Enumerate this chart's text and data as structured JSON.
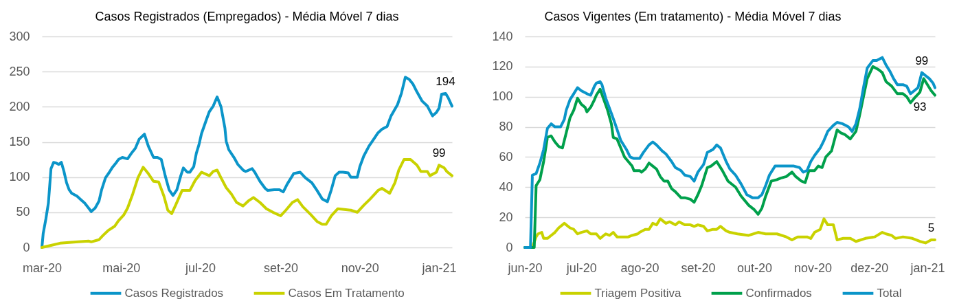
{
  "chart_data": [
    {
      "type": "line",
      "title": "Casos Registrados (Empregados) - Média Móvel 7 dias",
      "xlim": [
        "2020-03-01",
        "2021-01-11"
      ],
      "xticks": [
        {
          "value": "2020-03-01",
          "label": "mar-20"
        },
        {
          "value": "2020-05-01",
          "label": "mai-20"
        },
        {
          "value": "2020-07-01",
          "label": "jul-20"
        },
        {
          "value": "2020-09-01",
          "label": "set-20"
        },
        {
          "value": "2020-11-01",
          "label": "nov-20"
        },
        {
          "value": "2021-01-01",
          "label": "jan-21"
        }
      ],
      "ylim": [
        0,
        300
      ],
      "yticks": [
        0,
        50,
        100,
        150,
        200,
        250,
        300
      ],
      "grid": "y",
      "legend": "bottom",
      "series": [
        {
          "name": "Casos Registrados",
          "color": "#0b95c9",
          "x": [
            "2020-03-01",
            "2020-03-02",
            "2020-03-04",
            "2020-03-06",
            "2020-03-08",
            "2020-03-10",
            "2020-03-12",
            "2020-03-14",
            "2020-03-16",
            "2020-03-18",
            "2020-03-20",
            "2020-03-22",
            "2020-03-24",
            "2020-03-28",
            "2020-03-31",
            "2020-04-03",
            "2020-04-06",
            "2020-04-08",
            "2020-04-11",
            "2020-04-14",
            "2020-04-16",
            "2020-04-19",
            "2020-04-22",
            "2020-04-24",
            "2020-04-27",
            "2020-04-29",
            "2020-05-02",
            "2020-05-06",
            "2020-05-09",
            "2020-05-12",
            "2020-05-15",
            "2020-05-19",
            "2020-05-22",
            "2020-05-26",
            "2020-05-29",
            "2020-06-01",
            "2020-06-04",
            "2020-06-07",
            "2020-06-10",
            "2020-06-13",
            "2020-06-16",
            "2020-06-18",
            "2020-06-21",
            "2020-06-23",
            "2020-06-26",
            "2020-06-28",
            "2020-06-30",
            "2020-07-02",
            "2020-07-06",
            "2020-07-08",
            "2020-07-11",
            "2020-07-14",
            "2020-07-17",
            "2020-07-20",
            "2020-07-21",
            "2020-07-23",
            "2020-07-27",
            "2020-07-30",
            "2020-08-03",
            "2020-08-05",
            "2020-08-10",
            "2020-08-12",
            "2020-08-16",
            "2020-08-20",
            "2020-08-22",
            "2020-08-27",
            "2020-08-31",
            "2020-09-03",
            "2020-09-06",
            "2020-09-11",
            "2020-09-16",
            "2020-09-20",
            "2020-09-25",
            "2020-09-29",
            "2020-10-03",
            "2020-10-07",
            "2020-10-10",
            "2020-10-13",
            "2020-10-16",
            "2020-10-19",
            "2020-10-23",
            "2020-10-25",
            "2020-10-30",
            "2020-11-01",
            "2020-11-04",
            "2020-11-08",
            "2020-11-11",
            "2020-11-15",
            "2020-11-18",
            "2020-11-22",
            "2020-11-25",
            "2020-11-30",
            "2020-12-03",
            "2020-12-06",
            "2020-12-09",
            "2020-12-12",
            "2020-12-15",
            "2020-12-19",
            "2020-12-23",
            "2020-12-27",
            "2020-12-30",
            "2021-01-01",
            "2021-01-03",
            "2021-01-06",
            "2021-01-08",
            "2021-01-11"
          ],
          "values": [
            0,
            20,
            40,
            63,
            112,
            121,
            120,
            118,
            121,
            108,
            92,
            82,
            77,
            73,
            68,
            63,
            56,
            51,
            56,
            66,
            82,
            99,
            107,
            113,
            120,
            125,
            128,
            126,
            134,
            141,
            154,
            161,
            144,
            128,
            128,
            125,
            102,
            82,
            74,
            82,
            102,
            113,
            107,
            107,
            115,
            134,
            146,
            162,
            183,
            193,
            201,
            214,
            200,
            170,
            151,
            139,
            128,
            118,
            110,
            108,
            112,
            107,
            94,
            84,
            81,
            82,
            82,
            79,
            90,
            105,
            107,
            99,
            92,
            81,
            69,
            65,
            82,
            102,
            107,
            107,
            106,
            100,
            100,
            115,
            130,
            144,
            152,
            163,
            168,
            172,
            187,
            203,
            219,
            242,
            239,
            232,
            221,
            208,
            201,
            187,
            192,
            198,
            218,
            219,
            213,
            201
          ]
        },
        {
          "name": "Casos Em Tratamento",
          "color": "#c9d200",
          "x": [
            "2020-03-01",
            "2020-03-08",
            "2020-03-15",
            "2020-03-22",
            "2020-03-29",
            "2020-04-06",
            "2020-04-08",
            "2020-04-14",
            "2020-04-17",
            "2020-04-21",
            "2020-04-26",
            "2020-04-29",
            "2020-05-03",
            "2020-05-06",
            "2020-05-10",
            "2020-05-14",
            "2020-05-18",
            "2020-05-22",
            "2020-05-26",
            "2020-05-30",
            "2020-06-03",
            "2020-06-06",
            "2020-06-09",
            "2020-06-12",
            "2020-06-17",
            "2020-06-23",
            "2020-06-27",
            "2020-07-02",
            "2020-07-08",
            "2020-07-11",
            "2020-07-14",
            "2020-07-17",
            "2020-07-21",
            "2020-07-25",
            "2020-07-29",
            "2020-08-03",
            "2020-08-07",
            "2020-08-11",
            "2020-08-16",
            "2020-08-21",
            "2020-08-26",
            "2020-09-01",
            "2020-09-05",
            "2020-09-10",
            "2020-09-14",
            "2020-09-18",
            "2020-09-24",
            "2020-09-29",
            "2020-10-03",
            "2020-10-06",
            "2020-10-10",
            "2020-10-15",
            "2020-10-20",
            "2020-10-25",
            "2020-10-30",
            "2020-11-04",
            "2020-11-09",
            "2020-11-15",
            "2020-11-18",
            "2020-11-24",
            "2020-11-28",
            "2020-12-01",
            "2020-12-05",
            "2020-12-10",
            "2020-12-15",
            "2020-12-18",
            "2020-12-23",
            "2020-12-25",
            "2020-12-30",
            "2021-01-01",
            "2021-01-05",
            "2021-01-07",
            "2021-01-11"
          ],
          "values": [
            0,
            3,
            6,
            7,
            8,
            9,
            8,
            11,
            17,
            24,
            30,
            38,
            46,
            56,
            76,
            99,
            114,
            105,
            94,
            93,
            73,
            53,
            48,
            60,
            81,
            81,
            95,
            107,
            102,
            108,
            110,
            99,
            85,
            76,
            64,
            59,
            66,
            71,
            64,
            55,
            50,
            45,
            53,
            64,
            68,
            58,
            47,
            37,
            33,
            33,
            45,
            55,
            54,
            53,
            50,
            60,
            69,
            81,
            84,
            77,
            92,
            110,
            125,
            125,
            117,
            108,
            108,
            102,
            107,
            117,
            113,
            108,
            102
          ]
        }
      ],
      "annotations": [
        {
          "text": "194",
          "x": "2021-01-06",
          "y": 219
        },
        {
          "text": "99",
          "x": "2021-01-01",
          "y": 117
        }
      ]
    },
    {
      "type": "line",
      "title": "Casos Vigentes (Em tratamento) - Média Móvel 7 dias",
      "xlim": [
        "2020-06-01",
        "2021-01-05"
      ],
      "xticks": [
        {
          "value": "2020-06-01",
          "label": "jun-20"
        },
        {
          "value": "2020-07-01",
          "label": "jul-20"
        },
        {
          "value": "2020-08-01",
          "label": "ago-20"
        },
        {
          "value": "2020-09-01",
          "label": "set-20"
        },
        {
          "value": "2020-10-01",
          "label": "out-20"
        },
        {
          "value": "2020-11-01",
          "label": "nov-20"
        },
        {
          "value": "2020-12-01",
          "label": "dez-20"
        },
        {
          "value": "2021-01-01",
          "label": "jan-21"
        }
      ],
      "ylim": [
        0,
        140
      ],
      "yticks": [
        0,
        20,
        40,
        60,
        80,
        100,
        120,
        140
      ],
      "grid": "y",
      "legend": "bottom",
      "series": [
        {
          "name": "Triagem Positiva",
          "color": "#c9d200",
          "x": [
            "2020-06-01",
            "2020-06-05",
            "2020-06-07",
            "2020-06-08",
            "2020-06-10",
            "2020-06-11",
            "2020-06-13",
            "2020-06-15",
            "2020-06-17",
            "2020-06-19",
            "2020-06-22",
            "2020-06-25",
            "2020-06-27",
            "2020-06-29",
            "2020-07-01",
            "2020-07-04",
            "2020-07-06",
            "2020-07-09",
            "2020-07-11",
            "2020-07-14",
            "2020-07-16",
            "2020-07-18",
            "2020-07-20",
            "2020-07-23",
            "2020-07-26",
            "2020-07-28",
            "2020-07-31",
            "2020-08-01",
            "2020-08-04",
            "2020-08-06",
            "2020-08-08",
            "2020-08-10",
            "2020-08-12",
            "2020-08-15",
            "2020-08-17",
            "2020-08-20",
            "2020-08-22",
            "2020-08-25",
            "2020-08-28",
            "2020-08-30",
            "2020-09-01",
            "2020-09-04",
            "2020-09-06",
            "2020-09-09",
            "2020-09-11",
            "2020-09-13",
            "2020-09-16",
            "2020-09-18",
            "2020-09-22",
            "2020-09-28",
            "2020-10-03",
            "2020-10-07",
            "2020-10-13",
            "2020-10-18",
            "2020-10-21",
            "2020-10-24",
            "2020-10-29",
            "2020-10-31",
            "2020-11-02",
            "2020-11-05",
            "2020-11-07",
            "2020-11-09",
            "2020-11-12",
            "2020-11-14",
            "2020-11-17",
            "2020-11-21",
            "2020-11-24",
            "2020-11-29",
            "2020-12-04",
            "2020-12-08",
            "2020-12-10",
            "2020-12-13",
            "2020-12-15",
            "2020-12-19",
            "2020-12-24",
            "2020-12-28",
            "2020-12-31",
            "2021-01-03",
            "2021-01-05"
          ],
          "values": [
            0,
            0,
            7,
            9,
            10,
            6,
            6,
            8,
            10,
            13,
            16,
            13,
            12,
            9,
            10,
            11,
            9,
            9,
            6,
            9,
            8,
            10,
            7,
            7,
            7,
            8,
            9,
            10,
            12,
            12,
            16,
            15,
            19,
            16,
            17,
            15,
            17,
            15,
            15,
            14,
            15,
            14,
            11,
            12,
            12,
            14,
            11,
            10,
            9,
            8,
            10,
            9,
            9,
            7,
            5,
            7,
            7,
            6,
            10,
            12,
            19,
            15,
            15,
            5,
            6,
            6,
            4,
            6,
            7,
            10,
            9,
            8,
            6,
            7,
            6,
            4,
            3,
            5,
            5
          ]
        },
        {
          "name": "Confirmados",
          "color": "#00a04b",
          "x": [
            "2020-06-01",
            "2020-06-06",
            "2020-06-07",
            "2020-06-08",
            "2020-06-09",
            "2020-06-11",
            "2020-06-13",
            "2020-06-15",
            "2020-06-17",
            "2020-06-19",
            "2020-06-21",
            "2020-06-23",
            "2020-06-25",
            "2020-06-27",
            "2020-06-29",
            "2020-07-01",
            "2020-07-03",
            "2020-07-04",
            "2020-07-06",
            "2020-07-08",
            "2020-07-09",
            "2020-07-11",
            "2020-07-13",
            "2020-07-15",
            "2020-07-17",
            "2020-07-18",
            "2020-07-20",
            "2020-07-22",
            "2020-07-24",
            "2020-07-26",
            "2020-07-28",
            "2020-07-29",
            "2020-08-01",
            "2020-08-02",
            "2020-08-04",
            "2020-08-06",
            "2020-08-08",
            "2020-08-10",
            "2020-08-12",
            "2020-08-14",
            "2020-08-16",
            "2020-08-18",
            "2020-08-20",
            "2020-08-23",
            "2020-08-25",
            "2020-08-28",
            "2020-08-30",
            "2020-09-01",
            "2020-09-03",
            "2020-09-06",
            "2020-09-08",
            "2020-09-11",
            "2020-09-14",
            "2020-09-17",
            "2020-09-21",
            "2020-09-24",
            "2020-09-28",
            "2020-10-01",
            "2020-10-03",
            "2020-10-05",
            "2020-10-07",
            "2020-10-10",
            "2020-10-13",
            "2020-10-15",
            "2020-10-18",
            "2020-10-21",
            "2020-10-23",
            "2020-10-26",
            "2020-10-28",
            "2020-10-30",
            "2020-11-02",
            "2020-11-04",
            "2020-11-06",
            "2020-11-08",
            "2020-11-11",
            "2020-11-14",
            "2020-11-16",
            "2020-11-18",
            "2020-11-21",
            "2020-11-24",
            "2020-11-26",
            "2020-11-28",
            "2020-11-30",
            "2020-12-03",
            "2020-12-06",
            "2020-12-08",
            "2020-12-10",
            "2020-12-13",
            "2020-12-16",
            "2020-12-19",
            "2020-12-21",
            "2020-12-23",
            "2020-12-25",
            "2020-12-28",
            "2020-12-30",
            "2020-12-31",
            "2021-01-03",
            "2021-01-05"
          ],
          "values": [
            0,
            0,
            41,
            43,
            45,
            57,
            73,
            74,
            70,
            67,
            66,
            76,
            86,
            91,
            99,
            95,
            93,
            90,
            93,
            98,
            101,
            105,
            98,
            91,
            82,
            73,
            72,
            66,
            60,
            57,
            54,
            51,
            51,
            50,
            52,
            56,
            54,
            52,
            47,
            44,
            44,
            39,
            37,
            33,
            33,
            32,
            30,
            35,
            41,
            53,
            54,
            57,
            51,
            44,
            40,
            34,
            28,
            25,
            22,
            26,
            34,
            44,
            45,
            46,
            47,
            50,
            47,
            44,
            43,
            51,
            51,
            54,
            53,
            60,
            64,
            78,
            76,
            75,
            72,
            77,
            88,
            100,
            112,
            120,
            118,
            116,
            110,
            107,
            102,
            102,
            100,
            96,
            99,
            103,
            112,
            110,
            104,
            101
          ]
        },
        {
          "name": "Total",
          "color": "#0b95c9",
          "x": [
            "2020-06-01",
            "2020-06-04",
            "2020-06-05",
            "2020-06-07",
            "2020-06-09",
            "2020-06-11",
            "2020-06-13",
            "2020-06-15",
            "2020-06-17",
            "2020-06-20",
            "2020-06-22",
            "2020-06-23",
            "2020-06-25",
            "2020-06-27",
            "2020-06-29",
            "2020-07-01",
            "2020-07-04",
            "2020-07-06",
            "2020-07-08",
            "2020-07-09",
            "2020-07-11",
            "2020-07-12",
            "2020-07-14",
            "2020-07-17",
            "2020-07-19",
            "2020-07-22",
            "2020-07-25",
            "2020-07-27",
            "2020-07-29",
            "2020-08-01",
            "2020-08-03",
            "2020-08-06",
            "2020-08-08",
            "2020-08-10",
            "2020-08-13",
            "2020-08-15",
            "2020-08-18",
            "2020-08-20",
            "2020-08-23",
            "2020-08-25",
            "2020-08-28",
            "2020-08-30",
            "2020-09-01",
            "2020-09-04",
            "2020-09-06",
            "2020-09-09",
            "2020-09-11",
            "2020-09-13",
            "2020-09-16",
            "2020-09-18",
            "2020-09-21",
            "2020-09-24",
            "2020-09-27",
            "2020-09-30",
            "2020-10-03",
            "2020-10-05",
            "2020-10-07",
            "2020-10-09",
            "2020-10-12",
            "2020-10-15",
            "2020-10-17",
            "2020-10-19",
            "2020-10-22",
            "2020-10-25",
            "2020-10-27",
            "2020-10-29",
            "2020-10-31",
            "2020-11-02",
            "2020-11-05",
            "2020-11-07",
            "2020-11-09",
            "2020-11-12",
            "2020-11-14",
            "2020-11-17",
            "2020-11-20",
            "2020-11-22",
            "2020-11-24",
            "2020-11-26",
            "2020-11-28",
            "2020-11-30",
            "2020-12-03",
            "2020-12-05",
            "2020-12-08",
            "2020-12-10",
            "2020-12-12",
            "2020-12-14",
            "2020-12-16",
            "2020-12-19",
            "2020-12-21",
            "2020-12-23",
            "2020-12-25",
            "2020-12-27",
            "2020-12-29",
            "2020-12-31",
            "2021-01-02",
            "2021-01-04",
            "2021-01-05"
          ],
          "values": [
            0,
            0,
            48,
            49,
            56,
            65,
            79,
            82,
            80,
            80,
            85,
            91,
            98,
            102,
            106,
            104,
            102,
            101,
            107,
            109,
            110,
            108,
            99,
            89,
            82,
            71,
            65,
            60,
            59,
            59,
            63,
            68,
            70,
            68,
            64,
            62,
            57,
            53,
            51,
            48,
            47,
            44,
            50,
            55,
            63,
            65,
            68,
            66,
            57,
            52,
            48,
            42,
            35,
            33,
            33,
            35,
            41,
            48,
            54,
            54,
            54,
            54,
            54,
            53,
            50,
            51,
            57,
            61,
            66,
            71,
            77,
            81,
            83,
            82,
            80,
            77,
            82,
            92,
            106,
            119,
            124,
            124,
            126,
            121,
            117,
            112,
            108,
            108,
            107,
            102,
            104,
            106,
            116,
            114,
            112,
            109,
            106
          ]
        }
      ],
      "annotations": [
        {
          "text": "99",
          "x": "2020-12-29",
          "y": 116
        },
        {
          "text": "93",
          "x": "2020-12-28",
          "y": 103
        },
        {
          "text": "5",
          "x": "2021-01-03",
          "y": 5
        }
      ]
    }
  ]
}
